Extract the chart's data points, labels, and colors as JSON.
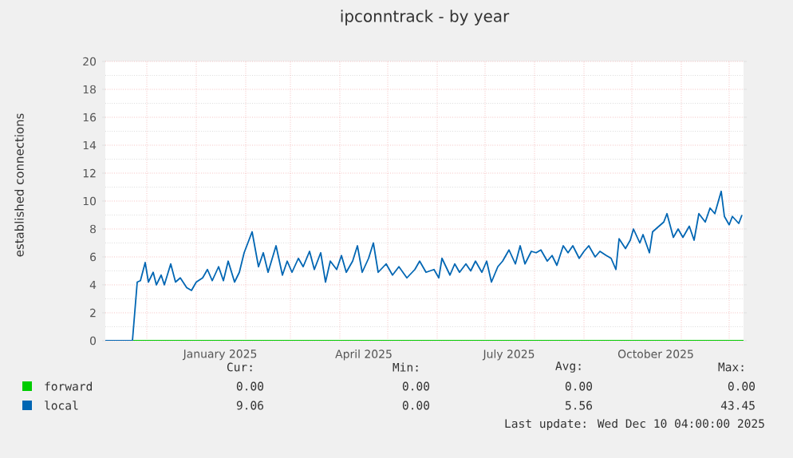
{
  "chart_data": {
    "type": "line",
    "title": "ipconntrack - by year",
    "ylabel": "established connections",
    "xlim": [
      "2024-11-05",
      "2025-12-10"
    ],
    "xticks": [
      {
        "value": "2024-12-01",
        "label": null
      },
      {
        "value": "2025-01-01",
        "label": null
      },
      {
        "value": "2025-02-01",
        "label": null
      },
      {
        "value": "2025-03-01",
        "label": null
      },
      {
        "value": "2025-04-01",
        "label": null
      },
      {
        "value": "2025-05-01",
        "label": null
      },
      {
        "value": "2025-06-01",
        "label": null
      },
      {
        "value": "2025-07-01",
        "label": null
      },
      {
        "value": "2025-08-01",
        "label": null
      },
      {
        "value": "2025-09-01",
        "label": null
      },
      {
        "value": "2025-10-01",
        "label": null
      },
      {
        "value": "2025-11-01",
        "label": null
      },
      {
        "value": "2025-12-01",
        "label": null
      },
      {
        "value": "2025-01-16",
        "label": "January 2025"
      },
      {
        "value": "2025-04-16",
        "label": "April 2025"
      },
      {
        "value": "2025-07-16",
        "label": "July 2025"
      },
      {
        "value": "2025-10-16",
        "label": "October 2025"
      }
    ],
    "ylim": [
      0,
      20
    ],
    "yticks": [
      0,
      2,
      4,
      6,
      8,
      10,
      12,
      14,
      16,
      18,
      20
    ],
    "grid": true,
    "legend": "bottom",
    "marker": "none",
    "line_style": "solid",
    "series": [
      {
        "name": "forward",
        "color": "#00cc00",
        "x": [
          "2024-11-05",
          "2025-12-10"
        ],
        "values": [
          0,
          0
        ]
      },
      {
        "name": "local",
        "color": "#0066b3",
        "x": [
          "2024-11-05",
          "2024-11-22",
          "2024-11-25",
          "2024-11-27",
          "2024-11-30",
          "2024-12-02",
          "2024-12-05",
          "2024-12-07",
          "2024-12-10",
          "2024-12-12",
          "2024-12-16",
          "2024-12-19",
          "2024-12-22",
          "2024-12-26",
          "2024-12-29",
          "2025-01-01",
          "2025-01-05",
          "2025-01-08",
          "2025-01-11",
          "2025-01-15",
          "2025-01-18",
          "2025-01-21",
          "2025-01-25",
          "2025-01-28",
          "2025-01-31",
          "2025-02-05",
          "2025-02-09",
          "2025-02-12",
          "2025-02-15",
          "2025-02-20",
          "2025-02-24",
          "2025-02-27",
          "2025-03-02",
          "2025-03-06",
          "2025-03-09",
          "2025-03-13",
          "2025-03-16",
          "2025-03-20",
          "2025-03-23",
          "2025-03-26",
          "2025-03-30",
          "2025-04-02",
          "2025-04-05",
          "2025-04-09",
          "2025-04-12",
          "2025-04-15",
          "2025-04-19",
          "2025-04-22",
          "2025-04-25",
          "2025-04-30",
          "2025-05-04",
          "2025-05-08",
          "2025-05-13",
          "2025-05-18",
          "2025-05-21",
          "2025-05-25",
          "2025-05-30",
          "2025-06-02",
          "2025-06-04",
          "2025-06-09",
          "2025-06-12",
          "2025-06-15",
          "2025-06-19",
          "2025-06-22",
          "2025-06-25",
          "2025-06-29",
          "2025-07-02",
          "2025-07-05",
          "2025-07-09",
          "2025-07-12",
          "2025-07-16",
          "2025-07-20",
          "2025-07-23",
          "2025-07-26",
          "2025-07-30",
          "2025-08-02",
          "2025-08-05",
          "2025-08-09",
          "2025-08-12",
          "2025-08-15",
          "2025-08-19",
          "2025-08-22",
          "2025-08-25",
          "2025-08-29",
          "2025-09-01",
          "2025-09-04",
          "2025-09-08",
          "2025-09-11",
          "2025-09-15",
          "2025-09-18",
          "2025-09-21",
          "2025-09-23",
          "2025-09-27",
          "2025-09-30",
          "2025-10-02",
          "2025-10-06",
          "2025-10-08",
          "2025-10-12",
          "2025-10-14",
          "2025-10-18",
          "2025-10-21",
          "2025-10-23",
          "2025-10-27",
          "2025-10-30",
          "2025-11-02",
          "2025-11-06",
          "2025-11-09",
          "2025-11-12",
          "2025-11-16",
          "2025-11-19",
          "2025-11-22",
          "2025-11-26",
          "2025-11-28",
          "2025-12-01",
          "2025-12-03",
          "2025-12-07",
          "2025-12-09"
        ],
        "values": [
          0,
          0,
          4.2,
          4.3,
          5.6,
          4.2,
          4.9,
          4.0,
          4.7,
          4.0,
          5.5,
          4.2,
          4.5,
          3.8,
          3.6,
          4.2,
          4.5,
          5.1,
          4.3,
          5.3,
          4.3,
          5.7,
          4.2,
          4.9,
          6.3,
          7.8,
          5.3,
          6.3,
          4.9,
          6.8,
          4.7,
          5.7,
          4.9,
          5.9,
          5.3,
          6.4,
          5.1,
          6.3,
          4.2,
          5.7,
          5.1,
          6.1,
          4.9,
          5.7,
          6.8,
          4.9,
          5.9,
          7.0,
          4.9,
          5.5,
          4.7,
          5.3,
          4.5,
          5.1,
          5.7,
          4.9,
          5.1,
          4.5,
          5.9,
          4.7,
          5.5,
          4.9,
          5.5,
          5.0,
          5.7,
          4.9,
          5.7,
          4.2,
          5.3,
          5.7,
          6.5,
          5.5,
          6.8,
          5.5,
          6.4,
          6.3,
          6.5,
          5.7,
          6.1,
          5.4,
          6.8,
          6.3,
          6.8,
          5.9,
          6.4,
          6.8,
          6.0,
          6.4,
          6.1,
          5.9,
          5.1,
          7.3,
          6.6,
          7.2,
          8.0,
          7.0,
          7.6,
          6.3,
          7.8,
          8.2,
          8.5,
          9.1,
          7.4,
          8.0,
          7.4,
          8.2,
          7.2,
          9.1,
          8.5,
          9.5,
          9.1,
          10.7,
          8.9,
          8.3,
          8.9,
          8.4,
          9.0
        ]
      }
    ],
    "annotations": [
      "Cur:",
      "Min:",
      "Avg:",
      "Max:",
      "0.00",
      "0.00",
      "0.00",
      "0.00",
      "9.06",
      "0.00",
      "5.56",
      "43.45",
      "Last update: Wed Dec 10 04:00:00 2025"
    ]
  }
}
